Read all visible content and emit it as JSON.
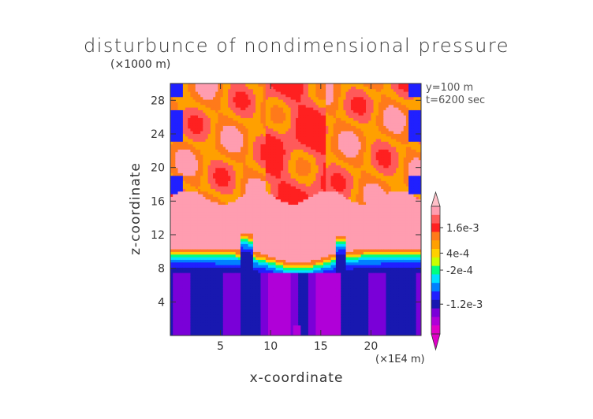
{
  "chart_data": {
    "type": "heatmap",
    "title": "disturbunce of nondimensional pressure",
    "xlabel": "x-coordinate",
    "ylabel": "z-coordinate",
    "x_unit": "(×1E4 m)",
    "y_unit": "(×1000 m)",
    "annotations": [
      "y=100 m",
      "t=6200 sec"
    ],
    "xlim": [
      0,
      25
    ],
    "ylim": [
      0,
      30
    ],
    "x_ticks": [
      5,
      10,
      15,
      20
    ],
    "y_ticks": [
      4,
      8,
      12,
      16,
      20,
      24,
      28
    ],
    "colorbar_tick_labels": [
      "1.6e-3",
      "4e-4",
      "-2e-4",
      "-1.2e-3"
    ],
    "colorbar_colors": [
      "#ff9db0",
      "#ff5a5a",
      "#ff2020",
      "#ff7a1a",
      "#ffa000",
      "#ffd000",
      "#c8ff00",
      "#00ff80",
      "#00e0ff",
      "#0080ff",
      "#2020ff",
      "#1818b0",
      "#7a00d8",
      "#b000d8",
      "#e000c8"
    ],
    "colorbar_max_color": "#ffc0c8",
    "colorbar_min_color": "#e000c8",
    "colorbar_tick_positions": [
      {
        "label": "1.6e-3",
        "index": 2
      },
      {
        "label": "4e-4",
        "index": 5
      },
      {
        "label": "-2e-4",
        "index": 7
      },
      {
        "label": "-1.2e-3",
        "index": 11
      }
    ],
    "field_description_rows": [
      {
        "z_range": [
          0,
          8
        ],
        "level": "negative (blue/purple)"
      },
      {
        "z_range": [
          8,
          11
        ],
        "level": "transition"
      },
      {
        "z_range": [
          11,
          17
        ],
        "level": "high positive (pink)"
      },
      {
        "z_range": [
          17,
          30
        ],
        "level": "positive mixed (red/orange)"
      }
    ]
  }
}
